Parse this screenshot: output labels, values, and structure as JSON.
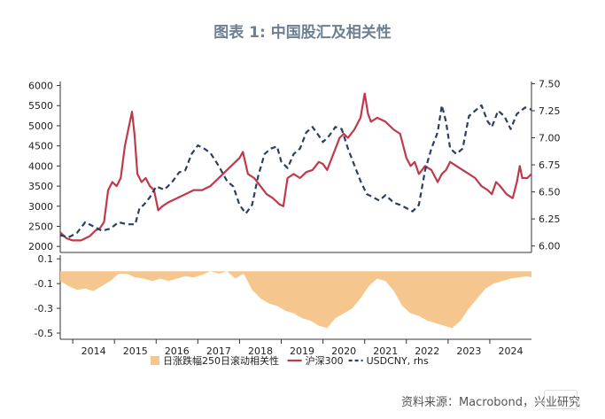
{
  "header": {
    "title": "图表 1: 中国股汇及相关性"
  },
  "footer": {
    "source": "资料来源：Macrobond，兴业研究"
  },
  "chart_data": [
    {
      "type": "line",
      "title": "",
      "x_ticks": [
        "2014",
        "2015",
        "2016",
        "2017",
        "2018",
        "2019",
        "2020",
        "2021",
        "2022",
        "2023",
        "2024"
      ],
      "xlim": [
        2013.7,
        2025.0
      ],
      "y_left": {
        "ticks": [
          2000,
          2500,
          3000,
          3500,
          4000,
          4500,
          5000,
          5500,
          6000
        ],
        "lim": [
          1850,
          6100
        ]
      },
      "y_right": {
        "ticks": [
          "6.00",
          "6.25",
          "6.50",
          "6.75",
          "7.00",
          "7.25",
          "7.50"
        ],
        "lim": [
          5.94,
          7.52
        ]
      },
      "colors": {
        "csi300": "#c0394b",
        "usdcny": "#2c3e63"
      },
      "series": [
        {
          "name": "沪深300",
          "axis": "left",
          "x": [
            2013.7,
            2013.85,
            2014.0,
            2014.2,
            2014.4,
            2014.55,
            2014.65,
            2014.75,
            2014.85,
            2014.95,
            2015.05,
            2015.15,
            2015.25,
            2015.35,
            2015.42,
            2015.48,
            2015.55,
            2015.65,
            2015.75,
            2015.85,
            2015.95,
            2016.05,
            2016.15,
            2016.3,
            2016.5,
            2016.7,
            2016.9,
            2017.1,
            2017.3,
            2017.5,
            2017.7,
            2017.85,
            2018.0,
            2018.08,
            2018.2,
            2018.35,
            2018.5,
            2018.65,
            2018.8,
            2018.95,
            2019.05,
            2019.15,
            2019.3,
            2019.45,
            2019.6,
            2019.75,
            2019.9,
            2020.0,
            2020.1,
            2020.25,
            2020.4,
            2020.5,
            2020.6,
            2020.75,
            2020.9,
            2021.0,
            2021.08,
            2021.15,
            2021.3,
            2021.5,
            2021.7,
            2021.85,
            2022.0,
            2022.1,
            2022.2,
            2022.3,
            2022.45,
            2022.6,
            2022.75,
            2022.85,
            2022.95,
            2023.05,
            2023.2,
            2023.35,
            2023.5,
            2023.65,
            2023.8,
            2023.95,
            2024.05,
            2024.15,
            2024.25,
            2024.4,
            2024.55,
            2024.65,
            2024.72,
            2024.78,
            2024.9,
            2025.0
          ],
          "values": [
            2350,
            2200,
            2150,
            2150,
            2250,
            2400,
            2450,
            2600,
            3400,
            3600,
            3500,
            3700,
            4500,
            5000,
            5350,
            4800,
            3800,
            3600,
            3700,
            3500,
            3400,
            2900,
            3000,
            3100,
            3200,
            3300,
            3400,
            3400,
            3500,
            3700,
            3900,
            4050,
            4200,
            4350,
            3800,
            3700,
            3500,
            3300,
            3200,
            3050,
            3000,
            3700,
            3800,
            3700,
            3850,
            3900,
            4100,
            4050,
            3900,
            4300,
            4700,
            4800,
            4700,
            4900,
            5200,
            5800,
            5300,
            5100,
            5200,
            5100,
            4900,
            4800,
            4200,
            4000,
            4100,
            3800,
            4000,
            3900,
            3600,
            3800,
            3900,
            4100,
            4000,
            3900,
            3800,
            3700,
            3500,
            3400,
            3300,
            3600,
            3500,
            3300,
            3200,
            3600,
            4000,
            3700,
            3700,
            3800
          ]
        },
        {
          "name": "USDCNY, rhs",
          "axis": "right",
          "x": [
            2013.7,
            2013.9,
            2014.1,
            2014.3,
            2014.5,
            2014.7,
            2014.9,
            2015.1,
            2015.3,
            2015.5,
            2015.6,
            2015.7,
            2015.85,
            2016.0,
            2016.2,
            2016.4,
            2016.55,
            2016.7,
            2016.85,
            2017.0,
            2017.15,
            2017.3,
            2017.5,
            2017.7,
            2017.85,
            2018.0,
            2018.15,
            2018.3,
            2018.45,
            2018.6,
            2018.75,
            2018.9,
            2019.0,
            2019.15,
            2019.3,
            2019.45,
            2019.6,
            2019.75,
            2019.9,
            2020.0,
            2020.15,
            2020.3,
            2020.45,
            2020.6,
            2020.75,
            2020.9,
            2021.05,
            2021.2,
            2021.35,
            2021.5,
            2021.7,
            2021.85,
            2022.0,
            2022.15,
            2022.3,
            2022.45,
            2022.6,
            2022.75,
            2022.85,
            2022.95,
            2023.05,
            2023.2,
            2023.35,
            2023.5,
            2023.65,
            2023.8,
            2023.95,
            2024.05,
            2024.2,
            2024.35,
            2024.5,
            2024.65,
            2024.75,
            2024.85,
            2025.0
          ],
          "values": [
            6.1,
            6.08,
            6.12,
            6.22,
            6.18,
            6.14,
            6.16,
            6.22,
            6.2,
            6.2,
            6.35,
            6.38,
            6.45,
            6.55,
            6.52,
            6.6,
            6.68,
            6.7,
            6.85,
            6.93,
            6.9,
            6.86,
            6.74,
            6.6,
            6.55,
            6.38,
            6.3,
            6.38,
            6.65,
            6.85,
            6.9,
            6.92,
            6.78,
            6.72,
            6.85,
            6.9,
            7.05,
            7.1,
            7.02,
            6.96,
            7.02,
            7.1,
            7.08,
            6.9,
            6.75,
            6.6,
            6.48,
            6.45,
            6.42,
            6.47,
            6.4,
            6.38,
            6.35,
            6.32,
            6.38,
            6.7,
            6.9,
            7.05,
            7.3,
            7.15,
            6.9,
            6.85,
            6.9,
            7.2,
            7.25,
            7.3,
            7.15,
            7.1,
            7.25,
            7.2,
            7.08,
            7.22,
            7.25,
            7.28,
            7.26
          ]
        }
      ]
    },
    {
      "type": "area",
      "title": "",
      "ylim": [
        -0.55,
        0.13
      ],
      "y_ticks": [
        "0.1",
        "-0.1",
        "-0.3",
        "-0.5"
      ],
      "colors": {
        "corr": "#f5c78e"
      },
      "series": [
        {
          "name": "日涨跌幅250日滚动相关性",
          "x": [
            2013.7,
            2013.9,
            2014.1,
            2014.3,
            2014.5,
            2014.7,
            2014.9,
            2015.1,
            2015.3,
            2015.5,
            2015.7,
            2015.9,
            2016.1,
            2016.3,
            2016.5,
            2016.7,
            2016.9,
            2017.1,
            2017.3,
            2017.5,
            2017.7,
            2017.9,
            2018.1,
            2018.3,
            2018.5,
            2018.7,
            2018.9,
            2019.1,
            2019.3,
            2019.5,
            2019.7,
            2019.9,
            2020.1,
            2020.3,
            2020.5,
            2020.7,
            2020.9,
            2021.1,
            2021.3,
            2021.5,
            2021.7,
            2021.9,
            2022.1,
            2022.3,
            2022.5,
            2022.7,
            2022.9,
            2023.1,
            2023.3,
            2023.5,
            2023.7,
            2023.9,
            2024.1,
            2024.3,
            2024.5,
            2024.7,
            2024.9,
            2025.0
          ],
          "values": [
            -0.08,
            -0.12,
            -0.15,
            -0.14,
            -0.16,
            -0.12,
            -0.08,
            -0.02,
            -0.02,
            -0.05,
            -0.06,
            -0.08,
            -0.06,
            -0.08,
            -0.06,
            -0.04,
            -0.05,
            -0.03,
            0.0,
            -0.02,
            0.0,
            -0.06,
            -0.02,
            -0.15,
            -0.22,
            -0.26,
            -0.28,
            -0.32,
            -0.34,
            -0.38,
            -0.4,
            -0.44,
            -0.46,
            -0.38,
            -0.34,
            -0.3,
            -0.22,
            -0.12,
            -0.06,
            -0.08,
            -0.16,
            -0.28,
            -0.34,
            -0.36,
            -0.4,
            -0.42,
            -0.44,
            -0.46,
            -0.4,
            -0.3,
            -0.22,
            -0.14,
            -0.1,
            -0.08,
            -0.06,
            -0.05,
            -0.04,
            -0.05
          ]
        }
      ]
    }
  ],
  "legend": [
    {
      "label": "日涨跌幅250日滚动相关性",
      "style": "box"
    },
    {
      "label": "沪深300",
      "style": "line"
    },
    {
      "label": "USDCNY, rhs",
      "style": "dashed"
    }
  ]
}
